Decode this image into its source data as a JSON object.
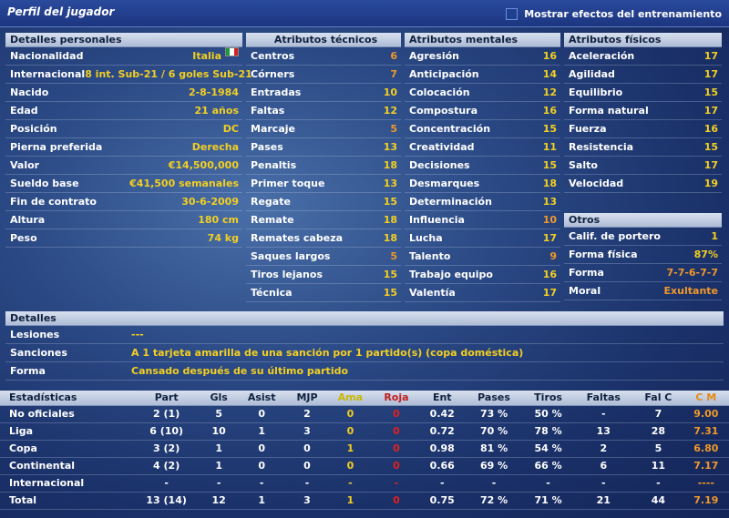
{
  "header": {
    "title": "Perfil del jugador",
    "training_toggle_label": "Mostrar efectos del entrenamiento"
  },
  "personal": {
    "title": "Detalles personales",
    "rows": [
      {
        "label": "Nacionalidad",
        "value": "Italia"
      },
      {
        "label": "Internacional",
        "value": "8 int. Sub-21 / 6 goles Sub-21"
      },
      {
        "label": "Nacido",
        "value": "2-8-1984"
      },
      {
        "label": "Edad",
        "value": "21 años"
      },
      {
        "label": "Posición",
        "value": "DC"
      },
      {
        "label": "Pierna preferida",
        "value": "Derecha"
      },
      {
        "label": "Valor",
        "value": "€14,500,000"
      },
      {
        "label": "Sueldo base",
        "value": "€41,500 semanales"
      },
      {
        "label": "Fin de contrato",
        "value": "30-6-2009"
      },
      {
        "label": "Altura",
        "value": "180 cm"
      },
      {
        "label": "Peso",
        "value": "74 kg"
      }
    ],
    "flag_colors": [
      "#1a9a3a",
      "#ffffff",
      "#d42020"
    ]
  },
  "technical": {
    "title": "Atributos técnicos",
    "rows": [
      {
        "label": "Centros",
        "value": "6"
      },
      {
        "label": "Córners",
        "value": "7"
      },
      {
        "label": "Entradas",
        "value": "10"
      },
      {
        "label": "Faltas",
        "value": "12"
      },
      {
        "label": "Marcaje",
        "value": "5"
      },
      {
        "label": "Pases",
        "value": "13"
      },
      {
        "label": "Penaltis",
        "value": "18"
      },
      {
        "label": "Primer toque",
        "value": "13"
      },
      {
        "label": "Regate",
        "value": "15"
      },
      {
        "label": "Remate",
        "value": "18"
      },
      {
        "label": "Remates cabeza",
        "value": "18"
      },
      {
        "label": "Saques largos",
        "value": "5"
      },
      {
        "label": "Tiros lejanos",
        "value": "15"
      },
      {
        "label": "Técnica",
        "value": "15"
      }
    ]
  },
  "mental": {
    "title": "Atributos mentales",
    "rows": [
      {
        "label": "Agresión",
        "value": "16"
      },
      {
        "label": "Anticipación",
        "value": "14"
      },
      {
        "label": "Colocación",
        "value": "12"
      },
      {
        "label": "Compostura",
        "value": "16"
      },
      {
        "label": "Concentración",
        "value": "15"
      },
      {
        "label": "Creatividad",
        "value": "11"
      },
      {
        "label": "Decisiones",
        "value": "15"
      },
      {
        "label": "Desmarques",
        "value": "18"
      },
      {
        "label": "Determinación",
        "value": "13"
      },
      {
        "label": "Influencia",
        "value": "10"
      },
      {
        "label": "Lucha",
        "value": "17"
      },
      {
        "label": "Talento",
        "value": "9"
      },
      {
        "label": "Trabajo equipo",
        "value": "16"
      },
      {
        "label": "Valentía",
        "value": "17"
      }
    ]
  },
  "physical": {
    "title": "Atributos físicos",
    "rows": [
      {
        "label": "Aceleración",
        "value": "17"
      },
      {
        "label": "Agilidad",
        "value": "17"
      },
      {
        "label": "Equilibrio",
        "value": "15"
      },
      {
        "label": "Forma natural",
        "value": "17"
      },
      {
        "label": "Fuerza",
        "value": "16"
      },
      {
        "label": "Resistencia",
        "value": "15"
      },
      {
        "label": "Salto",
        "value": "17"
      },
      {
        "label": "Velocidad",
        "value": "19"
      }
    ]
  },
  "others": {
    "title": "Otros",
    "rows": [
      {
        "label": "Calif. de portero",
        "value": "1"
      },
      {
        "label": "Forma física",
        "value": "87%"
      },
      {
        "label": "Forma",
        "value": "7-7-6-7-7"
      },
      {
        "label": "Moral",
        "value": "Exultante"
      }
    ]
  },
  "details": {
    "title": "Detalles",
    "rows": [
      {
        "label": "Lesiones",
        "value": "---"
      },
      {
        "label": "Sanciones",
        "value": "A 1 tarjeta amarilla de una sanción por 1 partido(s) (copa doméstica)"
      },
      {
        "label": "Forma",
        "value": "Cansado después de su último partido"
      }
    ]
  },
  "stats": {
    "headers": [
      "Estadísticas",
      "Part",
      "Gls",
      "Asist",
      "MJP",
      "Ama",
      "Roja",
      "Ent",
      "Pases",
      "Tiros",
      "Faltas",
      "Fal C",
      "C M"
    ],
    "rows": [
      [
        "No oficiales",
        "2 (1)",
        "5",
        "0",
        "2",
        "0",
        "0",
        "0.42",
        "73 %",
        "50 %",
        "-",
        "7",
        "9.00"
      ],
      [
        "Liga",
        "6 (10)",
        "10",
        "1",
        "3",
        "0",
        "0",
        "0.72",
        "70 %",
        "78 %",
        "13",
        "28",
        "7.31"
      ],
      [
        "Copa",
        "3 (2)",
        "1",
        "0",
        "0",
        "1",
        "0",
        "0.98",
        "81 %",
        "54 %",
        "2",
        "5",
        "6.80"
      ],
      [
        "Continental",
        "4 (2)",
        "1",
        "0",
        "0",
        "0",
        "0",
        "0.66",
        "69 %",
        "66 %",
        "6",
        "11",
        "7.17"
      ],
      [
        "Internacional",
        "-",
        "-",
        "-",
        "-",
        "-",
        "-",
        "-",
        "-",
        "-",
        "-",
        "-",
        "----"
      ],
      [
        "Total",
        "13 (14)",
        "12",
        "1",
        "3",
        "1",
        "0",
        "0.75",
        "72 %",
        "71 %",
        "21",
        "44",
        "7.19"
      ]
    ]
  }
}
